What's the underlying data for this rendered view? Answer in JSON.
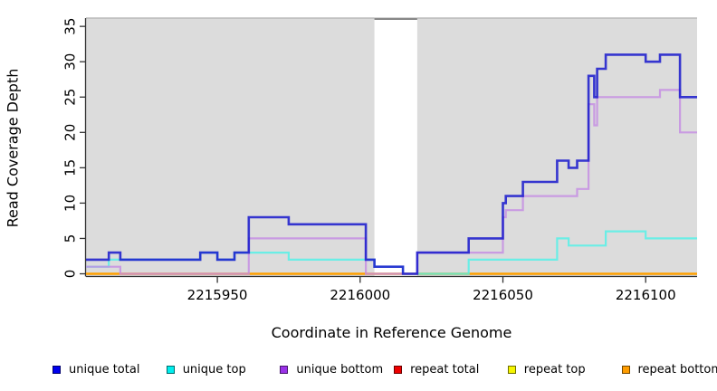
{
  "chart_data": {
    "type": "line",
    "subtype": "step-after",
    "title": "",
    "xlabel": "Coordinate in Reference Genome",
    "ylabel": "Read Coverage Depth",
    "xlim": [
      2215904,
      2216118
    ],
    "ylim": [
      0,
      35
    ],
    "x_ticks": [
      2215950,
      2216000,
      2216050,
      2216100
    ],
    "y_ticks": [
      0,
      5,
      10,
      15,
      20,
      25,
      30,
      35
    ],
    "grid": false,
    "plot_background": "#dcdcdc",
    "masked_region": {
      "from": 2216005,
      "to": 2216020,
      "fill": "#ffffff",
      "top_border": "#878787"
    },
    "series": [
      {
        "name": "unique total",
        "color": "rgba(23,23,205,0.85)",
        "width": 2.6,
        "points": [
          [
            2215904,
            2
          ],
          [
            2215912,
            3
          ],
          [
            2215916,
            2
          ],
          [
            2215944,
            3
          ],
          [
            2215950,
            2
          ],
          [
            2215956,
            3
          ],
          [
            2215961,
            8
          ],
          [
            2215975,
            7
          ],
          [
            2216002,
            2
          ],
          [
            2216005,
            1
          ],
          [
            2216015,
            0
          ],
          [
            2216020,
            3
          ],
          [
            2216038,
            5
          ],
          [
            2216050,
            10
          ],
          [
            2216051,
            11
          ],
          [
            2216057,
            13
          ],
          [
            2216069,
            16
          ],
          [
            2216073,
            15
          ],
          [
            2216076,
            16
          ],
          [
            2216080,
            28
          ],
          [
            2216082,
            25
          ],
          [
            2216083,
            29
          ],
          [
            2216086,
            31
          ],
          [
            2216100,
            30
          ],
          [
            2216105,
            31
          ],
          [
            2216112,
            25
          ]
        ]
      },
      {
        "name": "unique top",
        "color": "rgba(80,242,232,0.82)",
        "width": 2.2,
        "points": [
          [
            2215904,
            1
          ],
          [
            2215912,
            2
          ],
          [
            2215944,
            3
          ],
          [
            2215950,
            2
          ],
          [
            2215956,
            3
          ],
          [
            2215975,
            2
          ],
          [
            2216005,
            1
          ],
          [
            2216015,
            0
          ],
          [
            2216038,
            2
          ],
          [
            2216069,
            5
          ],
          [
            2216073,
            4
          ],
          [
            2216086,
            6
          ],
          [
            2216100,
            5
          ]
        ]
      },
      {
        "name": "unique bottom",
        "color": "rgba(196,140,227,0.82)",
        "width": 2.2,
        "points": [
          [
            2215904,
            1
          ],
          [
            2215916,
            0
          ],
          [
            2215961,
            5
          ],
          [
            2216002,
            0
          ],
          [
            2216020,
            3
          ],
          [
            2216050,
            8
          ],
          [
            2216051,
            9
          ],
          [
            2216057,
            11
          ],
          [
            2216076,
            12
          ],
          [
            2216080,
            24
          ],
          [
            2216082,
            21
          ],
          [
            2216083,
            25
          ],
          [
            2216105,
            26
          ],
          [
            2216112,
            20
          ]
        ]
      },
      {
        "name": "repeat total",
        "color": "rgba(205,0,0,0.9)",
        "width": 2.0,
        "points": [
          [
            2215904,
            0
          ]
        ]
      },
      {
        "name": "repeat top",
        "color": "rgba(245,245,0,0.9)",
        "width": 2.0,
        "points": [
          [
            2215904,
            0
          ]
        ]
      },
      {
        "name": "repeat bottom",
        "color": "rgba(255,160,0,1)",
        "width": 2.4,
        "points": [
          [
            2215904,
            0
          ]
        ]
      }
    ],
    "legend": {
      "position": "bottom",
      "items": [
        {
          "label": "unique total",
          "color": "#0000ee"
        },
        {
          "label": "unique top",
          "color": "#00eeee"
        },
        {
          "label": "unique bottom",
          "color": "#9a32e8"
        },
        {
          "label": "repeat total",
          "color": "#ee0000"
        },
        {
          "label": "repeat top",
          "color": "#f5f500"
        },
        {
          "label": "repeat bottom",
          "color": "#ff9d00"
        }
      ]
    }
  }
}
